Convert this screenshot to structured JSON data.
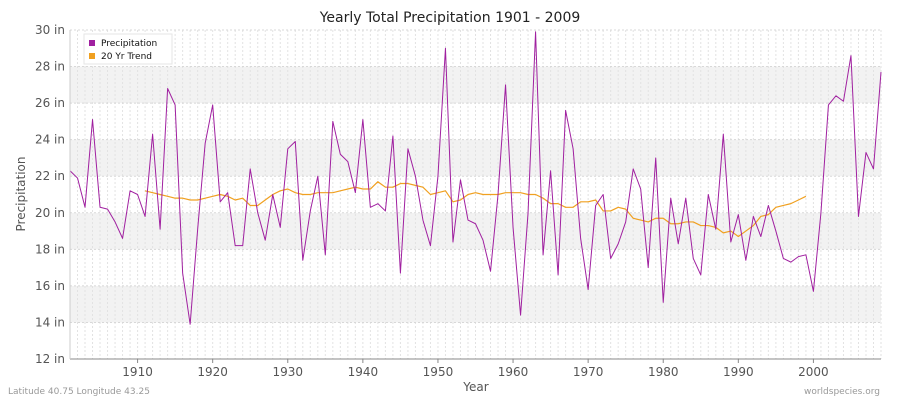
{
  "chart_data": {
    "type": "line",
    "title": "Yearly Total Precipitation 1901 - 2009",
    "xlabel": "Year",
    "ylabel": "Precipitation",
    "xlim": [
      1901,
      2009
    ],
    "ylim": [
      12,
      30
    ],
    "x_ticks": [
      1910,
      1920,
      1930,
      1940,
      1950,
      1960,
      1970,
      1980,
      1990,
      2000
    ],
    "y_ticks": [
      12,
      14,
      16,
      18,
      20,
      22,
      24,
      26,
      28,
      30
    ],
    "y_tick_labels": [
      "12 in",
      "14 in",
      "16 in",
      "18 in",
      "20 in",
      "22 in",
      "24 in",
      "26 in",
      "28 in",
      "30 in"
    ],
    "grid": true,
    "legend_position": "top-left",
    "series": [
      {
        "name": "Precipitation",
        "color": "#a020a0",
        "x_start": 1901,
        "values": [
          22.3,
          21.9,
          20.3,
          25.1,
          20.3,
          20.2,
          19.5,
          18.6,
          21.2,
          21.0,
          19.8,
          24.3,
          19.1,
          26.8,
          25.9,
          16.7,
          13.9,
          19.1,
          23.8,
          25.9,
          20.6,
          21.1,
          18.2,
          18.2,
          22.4,
          20.0,
          18.5,
          21.0,
          19.2,
          23.5,
          23.9,
          17.4,
          20.1,
          22.0,
          17.7,
          25.0,
          23.2,
          22.8,
          21.1,
          25.1,
          20.3,
          20.5,
          20.1,
          24.2,
          16.7,
          23.5,
          22.0,
          19.6,
          18.2,
          22.0,
          29.0,
          18.4,
          21.8,
          19.6,
          19.4,
          18.5,
          16.8,
          21.0,
          27.0,
          19.2,
          14.4,
          20.0,
          29.9,
          17.7,
          22.3,
          16.6,
          25.6,
          23.5,
          18.6,
          15.8,
          20.4,
          21.0,
          17.5,
          18.3,
          19.5,
          22.4,
          21.3,
          17.0,
          23.0,
          15.1,
          20.8,
          18.3,
          20.8,
          17.5,
          16.6,
          21.0,
          19.1,
          24.3,
          18.4,
          19.9,
          17.4,
          19.8,
          18.7,
          20.4,
          19.0,
          17.5,
          17.3,
          17.6,
          17.7,
          15.7,
          20.0,
          25.9,
          26.4,
          26.1,
          28.6,
          19.8,
          23.3,
          22.4,
          27.7
        ]
      },
      {
        "name": "20 Yr Trend",
        "color": "#f0a020",
        "x_start": 1911,
        "values": [
          21.2,
          21.1,
          21.0,
          20.9,
          20.8,
          20.8,
          20.7,
          20.7,
          20.8,
          20.9,
          21.0,
          20.9,
          20.7,
          20.8,
          20.4,
          20.4,
          20.7,
          21.0,
          21.2,
          21.3,
          21.1,
          21.0,
          21.0,
          21.1,
          21.1,
          21.1,
          21.2,
          21.3,
          21.4,
          21.3,
          21.3,
          21.7,
          21.4,
          21.4,
          21.6,
          21.6,
          21.5,
          21.4,
          21.0,
          21.1,
          21.2,
          20.6,
          20.7,
          21.0,
          21.1,
          21.0,
          21.0,
          21.0,
          21.1,
          21.1,
          21.1,
          21.0,
          21.0,
          20.8,
          20.5,
          20.5,
          20.3,
          20.3,
          20.6,
          20.6,
          20.7,
          20.1,
          20.1,
          20.3,
          20.2,
          19.7,
          19.6,
          19.5,
          19.7,
          19.7,
          19.4,
          19.4,
          19.5,
          19.5,
          19.3,
          19.3,
          19.2,
          18.9,
          19.0,
          18.7,
          19.0,
          19.3,
          19.8,
          19.9,
          20.3,
          20.4,
          20.5,
          20.7,
          20.9
        ]
      }
    ]
  },
  "footer": {
    "left": "Latitude 40.75 Longitude 43.25",
    "right": "worldspecies.org"
  }
}
